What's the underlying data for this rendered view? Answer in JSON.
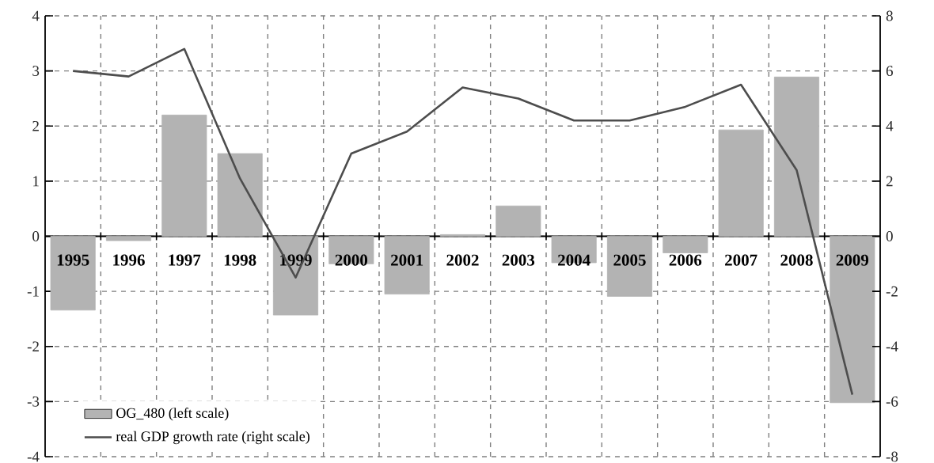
{
  "chart_data": {
    "type": "bar",
    "categories": [
      "1995",
      "1996",
      "1997",
      "1998",
      "1999",
      "2000",
      "2001",
      "2002",
      "2003",
      "2004",
      "2005",
      "2006",
      "2007",
      "2008",
      "2009"
    ],
    "series": [
      {
        "name": "OG_480 (left scale)",
        "color": "#b3b3b3",
        "values": [
          -1.34,
          -0.08,
          2.2,
          1.5,
          -1.43,
          -0.5,
          -1.05,
          0.03,
          0.55,
          -0.48,
          -1.09,
          -0.3,
          1.93,
          2.89,
          -3.02
        ]
      },
      {
        "name": "real GDP growth rate (right scale)",
        "type": "line",
        "axis": "y2",
        "color": "#4d4d4d",
        "line_style": "solid",
        "values": [
          6.0,
          5.8,
          6.8,
          2.1,
          -1.5,
          3.0,
          3.8,
          5.4,
          5.0,
          4.2,
          4.2,
          4.7,
          5.5,
          2.4,
          -5.75
        ]
      }
    ],
    "ylim": [
      -4,
      4
    ],
    "yticks": [
      -4,
      -3,
      -2,
      -1,
      0,
      1,
      2,
      3,
      4
    ],
    "y2lim": [
      -8,
      8
    ],
    "y2ticks": [
      -8,
      -6,
      -4,
      -2,
      0,
      2,
      4,
      6,
      8
    ],
    "grid": true,
    "legend": "bottom left"
  }
}
